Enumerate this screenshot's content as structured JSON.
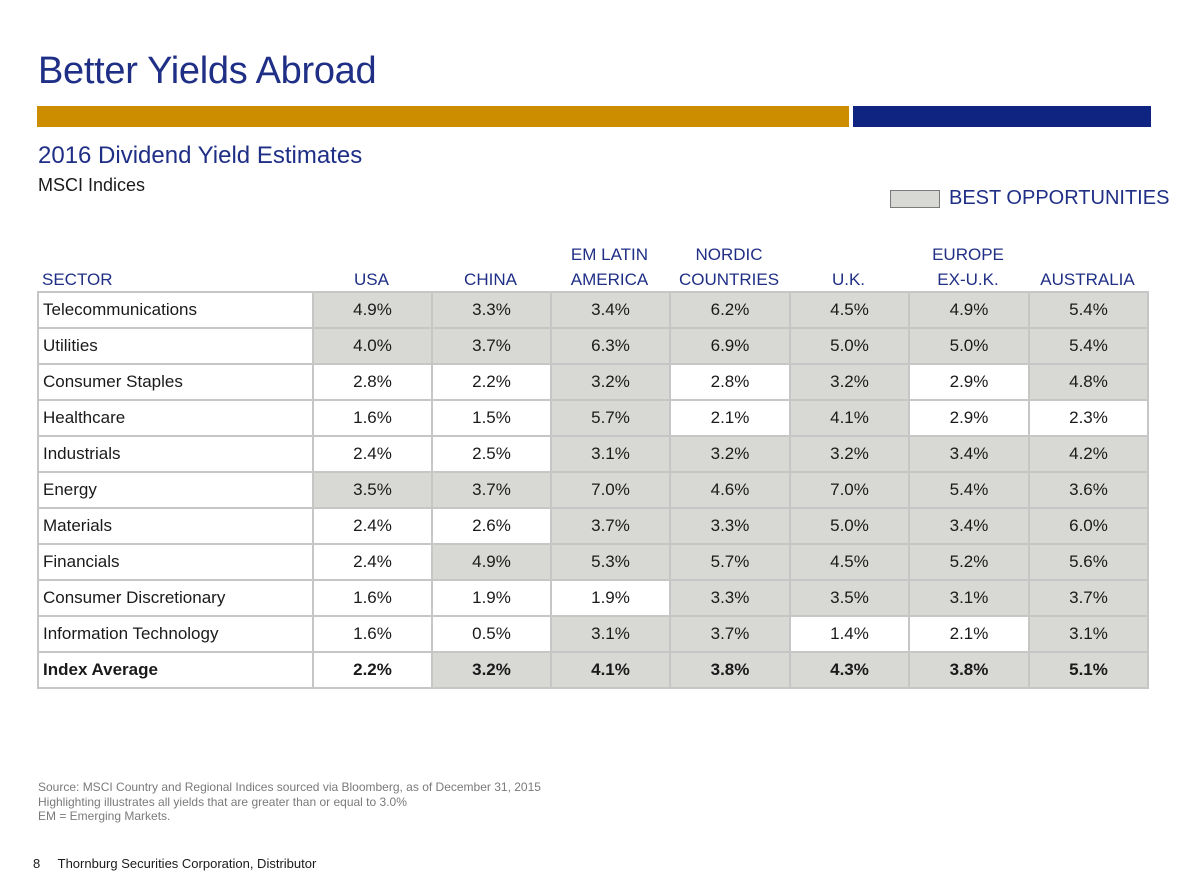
{
  "title": "Better Yields Abroad",
  "subtitle": "2016 Dividend Yield Estimates",
  "subsubtitle": "MSCI Indices",
  "legend": {
    "label": "BEST OPPORTUNITIES",
    "swatch_color": "#d8d8d4"
  },
  "colors": {
    "accent_gold": "#cc8e00",
    "accent_navy": "#0f2480",
    "title_blue": "#1f2f86"
  },
  "table": {
    "sector_header": "SECTOR",
    "columns": [
      {
        "line1": "",
        "line2": "USA"
      },
      {
        "line1": "",
        "line2": "CHINA"
      },
      {
        "line1": "EM LATIN",
        "line2": "AMERICA"
      },
      {
        "line1": "NORDIC",
        "line2": "COUNTRIES"
      },
      {
        "line1": "",
        "line2": "U.K."
      },
      {
        "line1": "EUROPE",
        "line2": "EX-U.K."
      },
      {
        "line1": "",
        "line2": "AUSTRALIA"
      }
    ],
    "rows": [
      {
        "sector": "Telecommunications",
        "values": [
          "4.9%",
          "3.3%",
          "3.4%",
          "6.2%",
          "4.5%",
          "4.9%",
          "5.4%"
        ],
        "highlight": [
          true,
          true,
          true,
          true,
          true,
          true,
          true
        ]
      },
      {
        "sector": "Utilities",
        "values": [
          "4.0%",
          "3.7%",
          "6.3%",
          "6.9%",
          "5.0%",
          "5.0%",
          "5.4%"
        ],
        "highlight": [
          true,
          true,
          true,
          true,
          true,
          true,
          true
        ]
      },
      {
        "sector": "Consumer Staples",
        "values": [
          "2.8%",
          "2.2%",
          "3.2%",
          "2.8%",
          "3.2%",
          "2.9%",
          "4.8%"
        ],
        "highlight": [
          false,
          false,
          true,
          false,
          true,
          false,
          true
        ]
      },
      {
        "sector": "Healthcare",
        "values": [
          "1.6%",
          "1.5%",
          "5.7%",
          "2.1%",
          "4.1%",
          "2.9%",
          "2.3%"
        ],
        "highlight": [
          false,
          false,
          true,
          false,
          true,
          false,
          false
        ]
      },
      {
        "sector": "Industrials",
        "values": [
          "2.4%",
          "2.5%",
          "3.1%",
          "3.2%",
          "3.2%",
          "3.4%",
          "4.2%"
        ],
        "highlight": [
          false,
          false,
          true,
          true,
          true,
          true,
          true
        ]
      },
      {
        "sector": "Energy",
        "values": [
          "3.5%",
          "3.7%",
          "7.0%",
          "4.6%",
          "7.0%",
          "5.4%",
          "3.6%"
        ],
        "highlight": [
          true,
          true,
          true,
          true,
          true,
          true,
          true
        ]
      },
      {
        "sector": "Materials",
        "values": [
          "2.4%",
          "2.6%",
          "3.7%",
          "3.3%",
          "5.0%",
          "3.4%",
          "6.0%"
        ],
        "highlight": [
          false,
          false,
          true,
          true,
          true,
          true,
          true
        ]
      },
      {
        "sector": "Financials",
        "values": [
          "2.4%",
          "4.9%",
          "5.3%",
          "5.7%",
          "4.5%",
          "5.2%",
          "5.6%"
        ],
        "highlight": [
          false,
          true,
          true,
          true,
          true,
          true,
          true
        ]
      },
      {
        "sector": "Consumer Discretionary",
        "values": [
          "1.6%",
          "1.9%",
          "1.9%",
          "3.3%",
          "3.5%",
          "3.1%",
          "3.7%"
        ],
        "highlight": [
          false,
          false,
          false,
          true,
          true,
          true,
          true
        ]
      },
      {
        "sector": "Information Technology",
        "values": [
          "1.6%",
          "0.5%",
          "3.1%",
          "3.7%",
          "1.4%",
          "2.1%",
          "3.1%"
        ],
        "highlight": [
          false,
          false,
          true,
          true,
          false,
          false,
          true
        ]
      }
    ],
    "average": {
      "sector": "Index Average",
      "values": [
        "2.2%",
        "3.2%",
        "4.1%",
        "3.8%",
        "4.3%",
        "3.8%",
        "5.1%"
      ],
      "highlight": [
        false,
        true,
        true,
        true,
        true,
        true,
        true
      ]
    }
  },
  "notes": [
    "Source: MSCI Country and Regional Indices sourced via Bloomberg, as of December 31, 2015",
    "Highlighting illustrates all yields that are greater than or equal to 3.0%",
    "EM = Emerging Markets."
  ],
  "footer": {
    "page": "8",
    "text": "Thornburg Securities Corporation, Distributor"
  }
}
